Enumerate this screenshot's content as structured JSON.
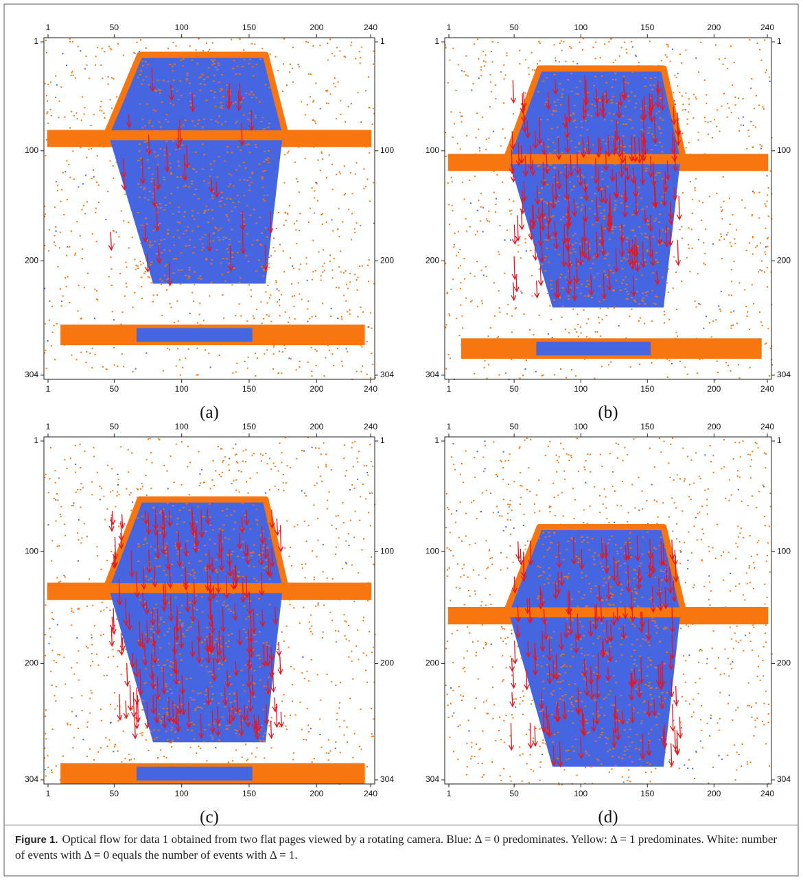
{
  "panels": [
    {
      "label": "(a)",
      "xlim": [
        1,
        240
      ],
      "ylim": [
        1,
        304
      ],
      "xticks": [
        1,
        50,
        100,
        150,
        200,
        240
      ],
      "yticks": [
        1,
        100,
        200,
        304
      ]
    },
    {
      "label": "(b)",
      "xlim": [
        1,
        240
      ],
      "ylim": [
        1,
        304
      ],
      "xticks": [
        1,
        50,
        100,
        150,
        200,
        240
      ],
      "yticks": [
        1,
        100,
        200,
        304
      ]
    },
    {
      "label": "(c)",
      "xlim": [
        1,
        240
      ],
      "ylim": [
        1,
        304
      ],
      "xticks": [
        1,
        50,
        100,
        150,
        200,
        240
      ],
      "yticks": [
        1,
        100,
        200,
        304
      ]
    },
    {
      "label": "(d)",
      "xlim": [
        1,
        240
      ],
      "ylim": [
        1,
        304
      ],
      "xticks": [
        1,
        50,
        100,
        150,
        200,
        240
      ],
      "yticks": [
        1,
        100,
        200,
        304
      ]
    }
  ],
  "caption": {
    "label": "Figure 1.",
    "text": "Optical flow for data 1 obtained from two flat pages viewed by a rotating camera. Blue: Δ = 0 predominates. Yellow: Δ = 1 predominates. White: number of events with Δ = 0 equals the number of events with Δ = 1."
  }
}
